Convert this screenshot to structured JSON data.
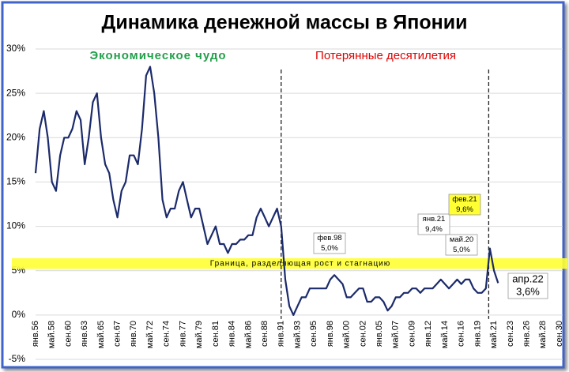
{
  "chart_data": {
    "type": "line",
    "title": "Динамика денежной массы в Японии",
    "annotations": [
      "Экономическое чудо",
      "Потерянные десятилетия",
      "Граница, разделяющая рост и стагнацию"
    ],
    "callouts": [
      [
        "фев.98",
        "5,0%"
      ],
      [
        "янв.21",
        "9,4%"
      ],
      [
        "фев.21",
        "9,6%"
      ],
      [
        "май.20",
        "5,0%"
      ],
      [
        "апр.22",
        "3,6%"
      ]
    ],
    "categories": [
      "янв.56",
      null,
      null,
      null,
      "май.58",
      null,
      null,
      null,
      "сен.60",
      null,
      null,
      null,
      "янв.63",
      null,
      null,
      null,
      "май.65",
      null,
      null,
      null,
      "сен.67",
      null,
      null,
      null,
      "янв.70",
      null,
      null,
      null,
      "май.72",
      null,
      null,
      null,
      "сен.74",
      null,
      null,
      null,
      "янв.77",
      null,
      null,
      null,
      "май.79",
      null,
      null,
      null,
      "сен.81",
      null,
      null,
      null,
      "янв.84",
      null,
      null,
      null,
      "май.86",
      null,
      null,
      null,
      "сен.88",
      null,
      null,
      null,
      "янв.91",
      null,
      null,
      null,
      "май.93",
      null,
      null,
      null,
      "сен.95",
      null,
      null,
      null,
      "янв.98",
      null,
      null,
      null,
      "май.00",
      null,
      null,
      null,
      "сен.02",
      null,
      null,
      null,
      "янв.05",
      null,
      null,
      null,
      "май.07",
      null,
      null,
      null,
      "сен.09",
      null,
      null,
      null,
      "янв.12",
      null,
      null,
      null,
      "май.14",
      null,
      null,
      null,
      "сен.16",
      null,
      null,
      null,
      "янв.19",
      null,
      null,
      null,
      "май.21",
      null,
      null,
      null,
      "сен.23",
      null,
      null,
      null,
      "янв.26",
      null,
      null,
      null,
      "май.28",
      null,
      null,
      null,
      "сен.30"
    ],
    "series": [
      {
        "color": "#1b2a6b",
        "values": [
          16,
          21,
          23,
          20,
          15,
          14,
          18,
          20,
          20,
          21,
          23,
          22,
          17,
          20,
          24,
          25,
          20,
          17,
          16,
          13,
          11,
          14,
          15,
          18,
          18,
          17,
          21,
          27,
          28,
          25,
          20,
          13,
          11,
          12,
          12,
          14,
          15,
          13,
          11,
          12,
          12,
          10,
          8,
          9,
          10,
          8,
          8,
          7,
          8,
          8,
          8.5,
          8.5,
          9,
          9,
          11,
          12,
          11,
          10,
          11,
          12,
          10,
          4,
          1,
          0,
          1,
          2,
          2,
          3,
          3,
          3,
          3,
          3,
          4,
          4.5,
          4,
          3.5,
          2,
          2,
          2.5,
          3,
          3,
          1.5,
          1.5,
          2,
          2,
          1.5,
          0.5,
          1,
          2,
          2,
          2.5,
          2.5,
          3,
          3,
          2.5,
          3,
          3,
          3,
          3.5,
          4,
          3.5,
          3,
          3.5,
          4,
          3.5,
          4,
          4,
          3,
          2.5,
          2.5,
          3,
          7.5,
          5,
          3.6,
          null,
          null,
          null,
          null,
          null,
          null,
          null,
          null,
          null,
          null,
          null,
          null,
          null,
          null,
          null
        ]
      }
    ],
    "ylim": [
      -5,
      30
    ],
    "yticks": [
      {
        "value": -5,
        "label": "-5%"
      },
      {
        "value": 0,
        "label": "0%"
      },
      {
        "value": 5,
        "label": "5%"
      },
      {
        "value": 10,
        "label": "10%"
      },
      {
        "value": 15,
        "label": "15%"
      },
      {
        "value": 20,
        "label": "20%"
      },
      {
        "value": 25,
        "label": "25%"
      },
      {
        "value": 30,
        "label": "30%"
      }
    ],
    "grid": true
  }
}
